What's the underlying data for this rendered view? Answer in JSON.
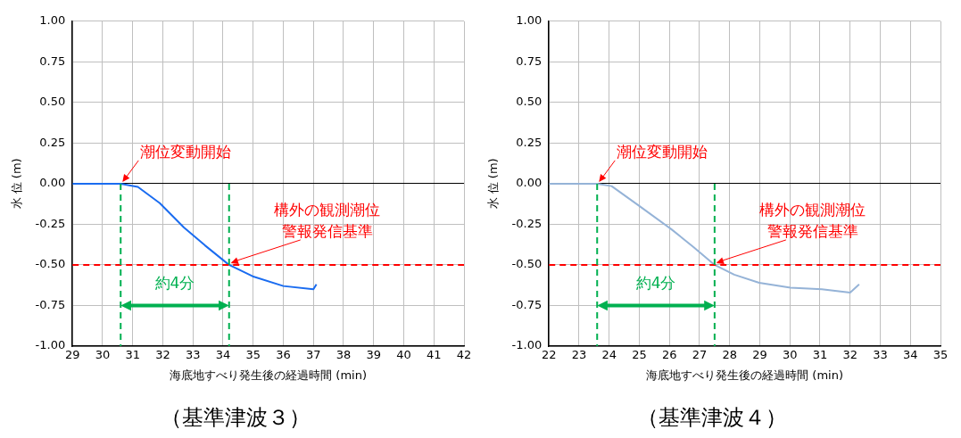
{
  "chart_data": [
    {
      "type": "line",
      "title": "（基準津波３）",
      "xlabel": "海底地すべり発生後の経過時間 (min)",
      "ylabel": "水 位 (m)",
      "series": [
        {
          "color": "#1a6cf0",
          "x": [
            29,
            30,
            30.6,
            31.17,
            31.9,
            32.7,
            33.4,
            34.2,
            34.98,
            36.0,
            37.0,
            37.1
          ],
          "values": [
            0,
            0,
            0,
            -0.02,
            -0.12,
            -0.27,
            -0.38,
            -0.5,
            -0.57,
            -0.63,
            -0.65,
            -0.62
          ]
        }
      ],
      "xlim": [
        29,
        42
      ],
      "xticks": [
        29,
        30,
        31,
        32,
        33,
        34,
        35,
        36,
        37,
        38,
        39,
        40,
        41,
        42
      ],
      "ylim": [
        -1,
        1
      ],
      "yticks": [
        {
          "value": -1,
          "label": "-1.00"
        },
        {
          "value": -0.75,
          "label": "-0.75"
        },
        {
          "value": -0.5,
          "label": "-0.50"
        },
        {
          "value": -0.25,
          "label": "-0.25"
        },
        {
          "value": 0,
          "label": "0.00"
        },
        {
          "value": 0.25,
          "label": "0.25"
        },
        {
          "value": 0.5,
          "label": "0.50"
        },
        {
          "value": 0.75,
          "label": "0.75"
        },
        {
          "value": 1,
          "label": "1.00"
        }
      ],
      "ref_lines": [
        {
          "axis": "y",
          "value": -0.5,
          "color": "#ff0000",
          "line_style": "dashed"
        },
        {
          "axis": "x",
          "value": 30.6,
          "color": "#00b050",
          "line_style": "dashed"
        },
        {
          "axis": "x",
          "value": 34.2,
          "color": "#00b050",
          "line_style": "dashed"
        }
      ],
      "annotations": [
        {
          "text": "潮位変動開始",
          "x": 30.6,
          "y": 0
        },
        {
          "text": "構外の観測潮位警報発信基準",
          "x": 34.2,
          "y": -0.5
        },
        "約4分"
      ],
      "grid": true,
      "marker": "none",
      "line_style": "solid",
      "legend": false
    },
    {
      "type": "line",
      "title": "（基準津波４）",
      "xlabel": "海底地すべり発生後の経過時間 (min)",
      "ylabel": "水 位 (m)",
      "series": [
        {
          "color": "#95b3d7",
          "x": [
            22,
            23,
            23.6,
            24.08,
            25.02,
            26.06,
            26.8,
            27.5,
            28.15,
            28.98,
            30.02,
            31.06,
            32.0,
            32.3
          ],
          "values": [
            0,
            0,
            0,
            -0.015,
            -0.14,
            -0.28,
            -0.39,
            -0.5,
            -0.56,
            -0.61,
            -0.64,
            -0.65,
            -0.67,
            -0.62
          ]
        }
      ],
      "xlim": [
        22,
        35
      ],
      "xticks": [
        22,
        23,
        24,
        25,
        26,
        27,
        28,
        29,
        30,
        31,
        32,
        33,
        34,
        35
      ],
      "ylim": [
        -1,
        1
      ],
      "yticks": [
        {
          "value": -1,
          "label": "-1.00"
        },
        {
          "value": -0.75,
          "label": "-0.75"
        },
        {
          "value": -0.5,
          "label": "-0.50"
        },
        {
          "value": -0.25,
          "label": "-0.25"
        },
        {
          "value": 0,
          "label": "0.00"
        },
        {
          "value": 0.25,
          "label": "0.25"
        },
        {
          "value": 0.5,
          "label": "0.50"
        },
        {
          "value": 0.75,
          "label": "0.75"
        },
        {
          "value": 1,
          "label": "1.00"
        }
      ],
      "ref_lines": [
        {
          "axis": "y",
          "value": -0.5,
          "color": "#ff0000",
          "line_style": "dashed"
        },
        {
          "axis": "x",
          "value": 23.6,
          "color": "#00b050",
          "line_style": "dashed"
        },
        {
          "axis": "x",
          "value": 27.5,
          "color": "#00b050",
          "line_style": "dashed"
        }
      ],
      "annotations": [
        {
          "text": "潮位変動開始",
          "x": 23.6,
          "y": 0
        },
        {
          "text": "構外の観測潮位警報発信基準",
          "x": 27.5,
          "y": -0.5
        },
        "約4分"
      ],
      "grid": true,
      "marker": "none",
      "line_style": "solid",
      "legend": false
    }
  ]
}
